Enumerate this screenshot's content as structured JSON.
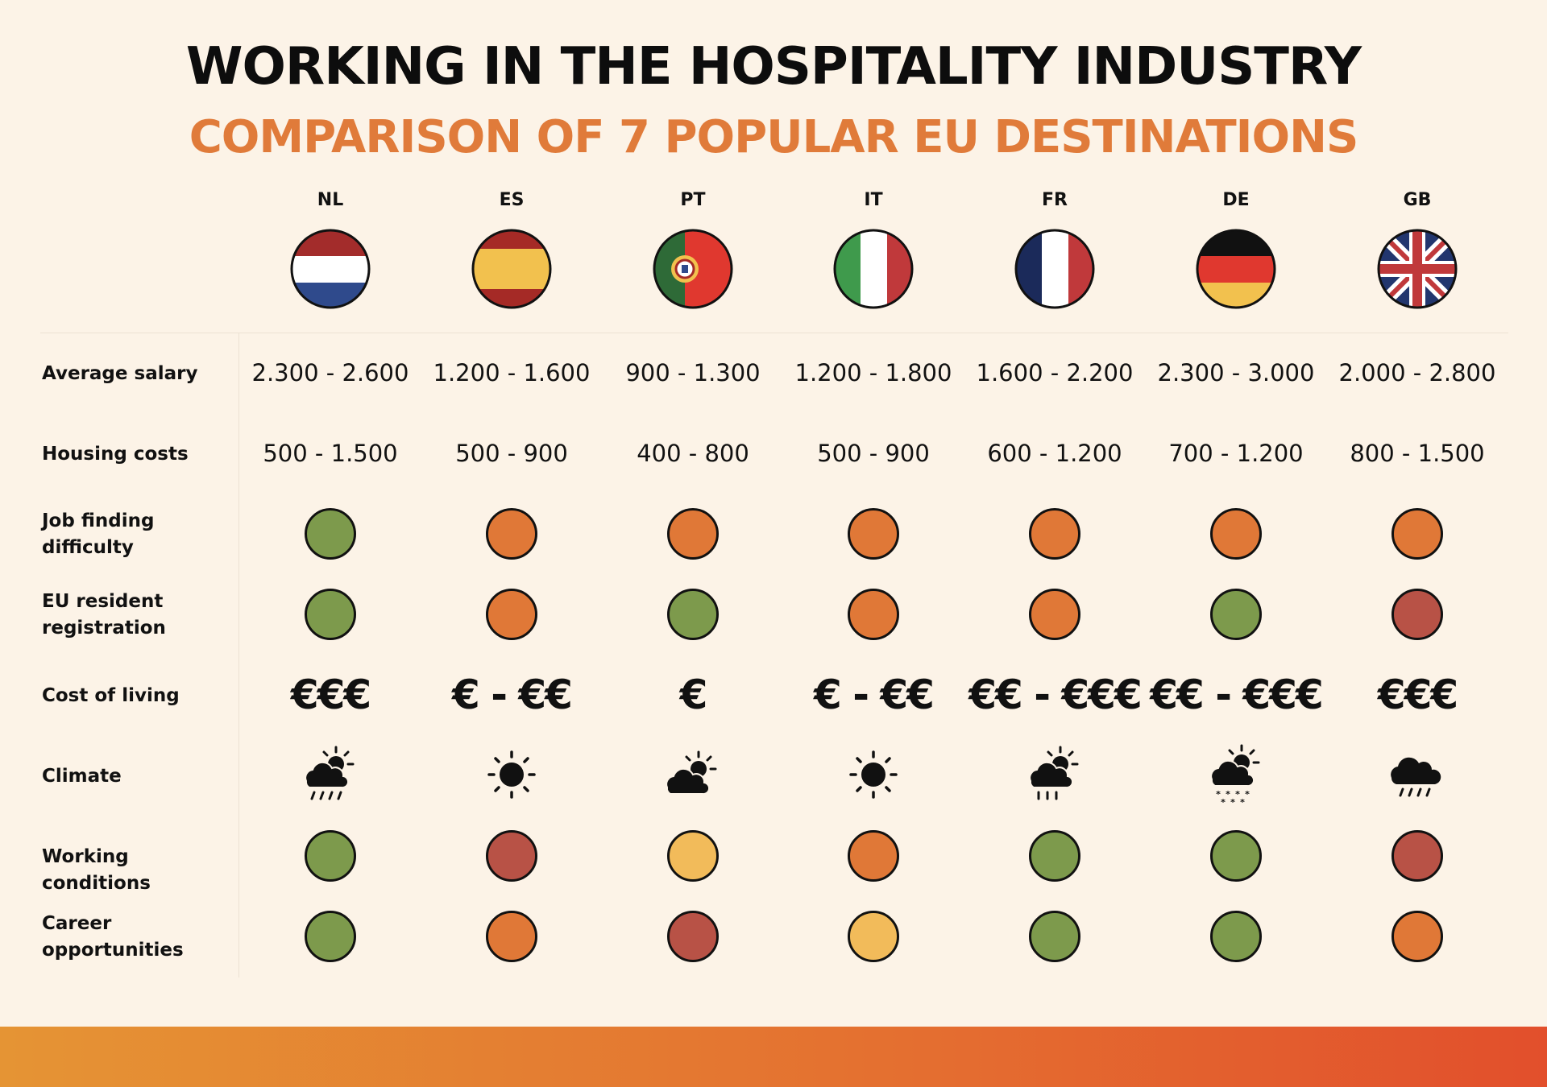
{
  "header": {
    "title": "WORKING IN THE HOSPITALITY INDUSTRY",
    "subtitle": "COMPARISON OF 7 POPULAR EU DESTINATIONS"
  },
  "countries": [
    {
      "code": "NL",
      "flag": "netherlands-flag-icon"
    },
    {
      "code": "ES",
      "flag": "spain-flag-icon"
    },
    {
      "code": "PT",
      "flag": "portugal-flag-icon"
    },
    {
      "code": "IT",
      "flag": "italy-flag-icon"
    },
    {
      "code": "FR",
      "flag": "france-flag-icon"
    },
    {
      "code": "DE",
      "flag": "germany-flag-icon"
    },
    {
      "code": "GB",
      "flag": "uk-flag-icon"
    }
  ],
  "rows": {
    "salary": {
      "label": "Average salary",
      "values": [
        "2.300 - 2.600",
        "1.200 - 1.600",
        "900 - 1.300",
        "1.200 - 1.800",
        "1.600 - 2.200",
        "2.300 - 3.000",
        "2.000 - 2.800"
      ]
    },
    "housing": {
      "label": "Housing costs",
      "values": [
        "500 - 1.500",
        "500 - 900",
        "400 - 800",
        "500 - 900",
        "600 - 1.200",
        "700 - 1.200",
        "800 - 1.500"
      ]
    },
    "job": {
      "label": "Job finding difficulty",
      "ratings": [
        "green",
        "orange",
        "orange",
        "orange",
        "orange",
        "orange",
        "orange"
      ]
    },
    "resident": {
      "label": "EU resident registration",
      "ratings": [
        "green",
        "orange",
        "green",
        "orange",
        "orange",
        "green",
        "red"
      ]
    },
    "living": {
      "label": "Cost of living",
      "values": [
        "€€€",
        "€ - €€",
        "€",
        "€ - €€",
        "€€ - €€€",
        "€€ - €€€",
        "€€€"
      ]
    },
    "climate": {
      "label": "Climate",
      "icons": [
        "sun-cloud-rain-icon",
        "sun-icon",
        "sun-cloud-icon",
        "sun-icon",
        "sun-cloud-rain-icon",
        "sun-cloud-snow-icon",
        "cloud-rain-icon"
      ]
    },
    "working": {
      "label": "Working conditions",
      "ratings": [
        "green",
        "red",
        "yellow",
        "orange",
        "green",
        "green",
        "red"
      ]
    },
    "career": {
      "label": "Career opportunities",
      "ratings": [
        "green",
        "orange",
        "red",
        "yellow",
        "green",
        "green",
        "orange"
      ]
    }
  },
  "colors": {
    "green": "#7d9a4c",
    "orange": "#e07837",
    "red": "#b85246",
    "yellow": "#f2bb5a",
    "subtitle": "#e07b3a"
  }
}
